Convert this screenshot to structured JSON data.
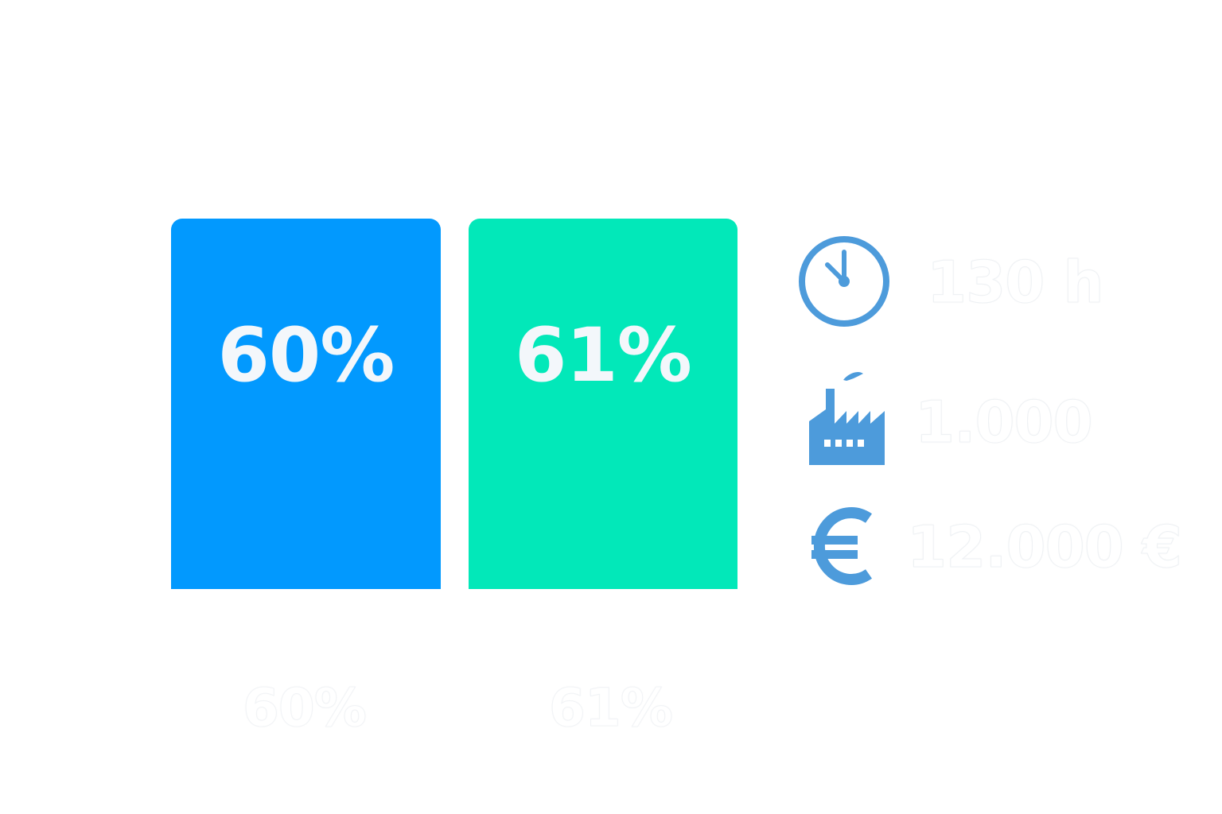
{
  "cards": [
    {
      "value": "60%",
      "color": "#0299fe"
    },
    {
      "value": "61%",
      "color": "#02e8b9"
    }
  ],
  "captions": [
    "60%",
    "61%"
  ],
  "stats": [
    {
      "icon": "clock-icon",
      "value": "130 h"
    },
    {
      "icon": "factory-icon",
      "value": "1.000"
    },
    {
      "icon": "euro-icon",
      "value": "12.000 €"
    }
  ],
  "icon_color": "#4d9bdb"
}
